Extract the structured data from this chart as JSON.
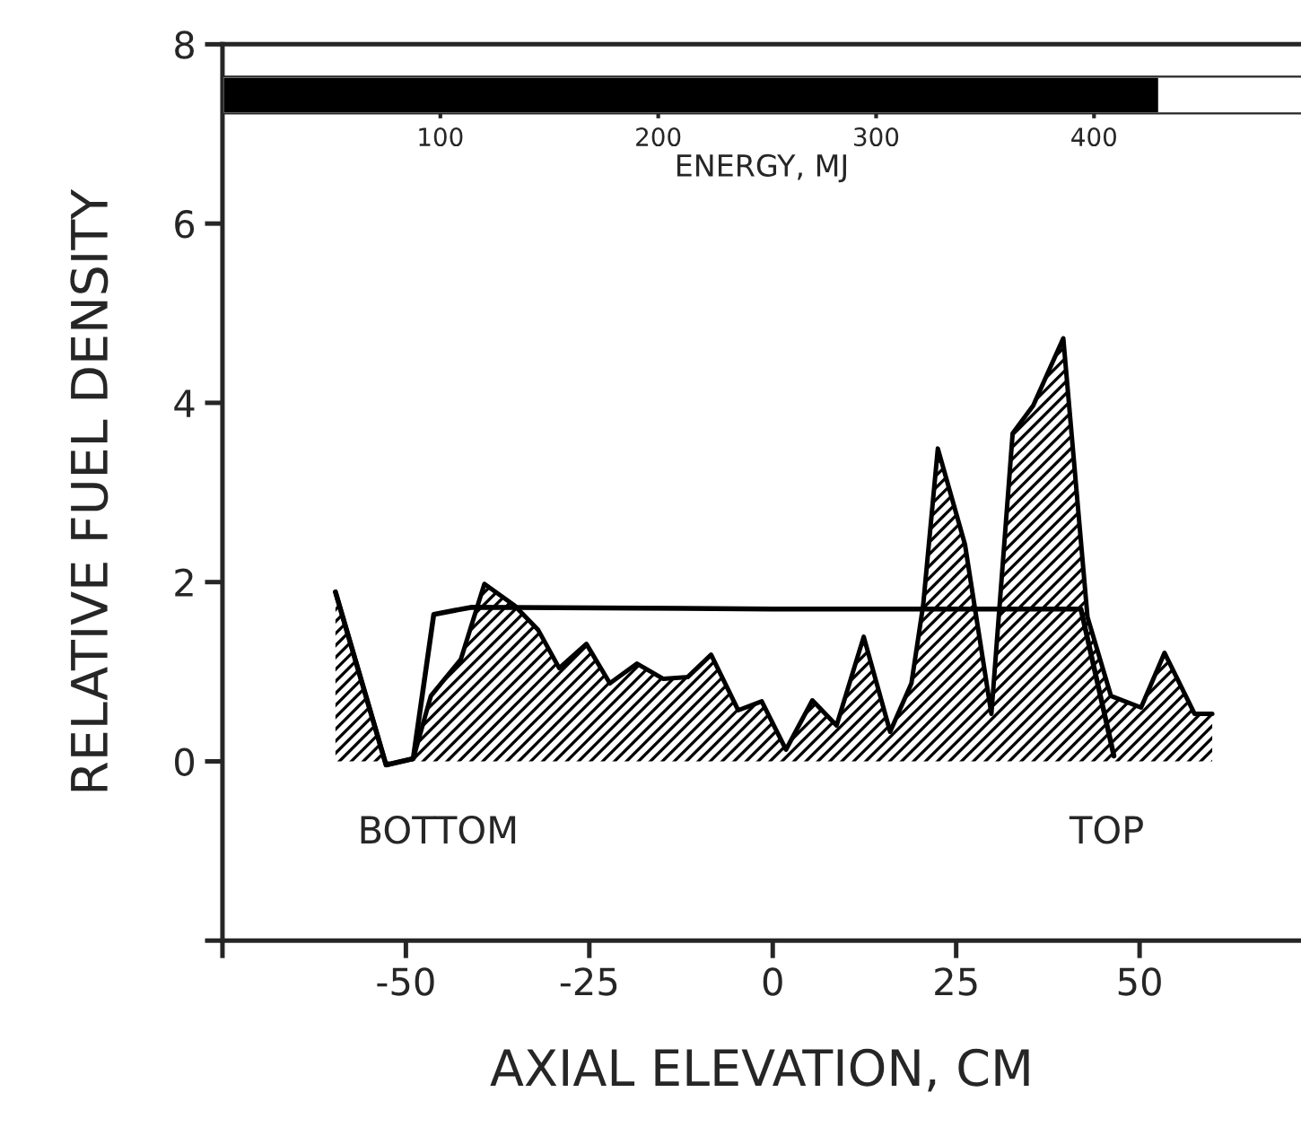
{
  "chart_data": [
    {
      "type": "area",
      "xlabel": "AXIAL ELEVATION, CM",
      "ylabel": "RELATIVE FUEL DENSITY",
      "xlim": [
        -75,
        72
      ],
      "xticks": [
        {
          "value": -75,
          "label": null
        },
        -50,
        -25,
        0,
        25,
        50
      ],
      "ylim": [
        -2,
        8
      ],
      "yticks": [
        {
          "value": -2,
          "label": null
        },
        0,
        2,
        4,
        6,
        8
      ],
      "grid": false,
      "legend": false,
      "series": [
        {
          "type": "area",
          "color": "#000000",
          "x": [
            -59.6,
            -52.7,
            -49,
            -46.6,
            -42.5,
            -39.3,
            -35.2,
            -32,
            -29.1,
            -25.4,
            -22.2,
            -18.5,
            -14.9,
            -11.6,
            -8.4,
            -4.7,
            -1.5,
            1.8,
            5.4,
            8.7,
            12.4,
            16.0,
            18.9,
            20.5,
            22.5,
            26.2,
            29.8,
            32.7,
            35.5,
            39.6,
            42.9,
            46.1,
            50.2,
            53.4,
            57.5,
            59.9
          ],
          "values": [
            1.89,
            -0.04,
            0.03,
            0.73,
            1.14,
            1.98,
            1.74,
            1.47,
            1.04,
            1.31,
            0.87,
            1.09,
            0.92,
            0.94,
            1.19,
            0.57,
            0.67,
            0.13,
            0.68,
            0.4,
            1.39,
            0.33,
            0.87,
            1.74,
            3.49,
            2.42,
            0.53,
            3.66,
            3.97,
            4.72,
            1.61,
            0.73,
            0.6,
            1.21,
            0.53,
            0.53
          ]
        },
        {
          "type": "line",
          "color": "#000000",
          "line_style": "solid",
          "x": [
            -59.6,
            -52.7,
            -49,
            -46.2,
            -41,
            0,
            42,
            46.5
          ],
          "values": [
            1.89,
            -0.04,
            0.03,
            1.64,
            1.72,
            1.7,
            1.7,
            0.06
          ]
        }
      ],
      "annotations": [
        "BOTTOM",
        "TOP"
      ]
    },
    {
      "type": "bar",
      "orientation": "horizontal",
      "xlabel": "ENERGY, MJ",
      "categories": [
        null
      ],
      "values": [
        430
      ],
      "color": "#000000",
      "xlim": [
        0,
        495
      ],
      "xticks": [
        100,
        200,
        300,
        400
      ]
    }
  ]
}
